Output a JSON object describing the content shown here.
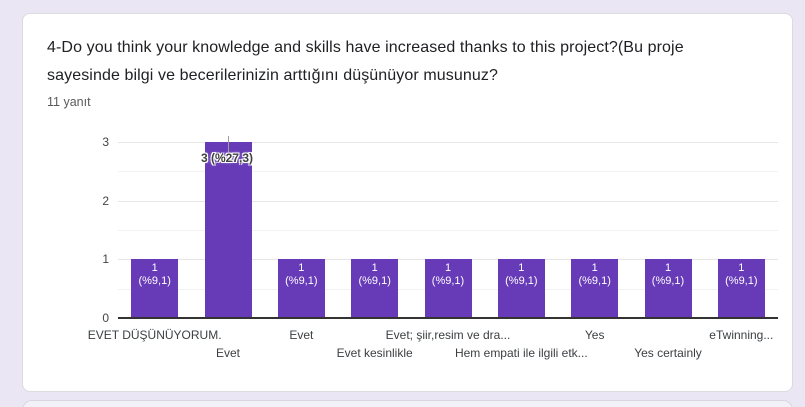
{
  "question_card": {
    "title": "4-Do you think your knowledge and skills have increased thanks to this project?(Bu proje sayesinde bilgi ve becerilerinizin arttığını düşünüyor musunuz?",
    "response_count": "11 yanıt"
  },
  "colors": {
    "bar": "#673ab7",
    "page_background": "#eae6f3",
    "card_background": "#ffffff",
    "annotation_text": "#404040",
    "inside_label_text": "#ffffff"
  },
  "chart_data": {
    "type": "bar",
    "title": "",
    "xlabel": "",
    "ylabel": "",
    "categories": [
      "EVET DÜŞÜNÜYORUM.",
      "Evet",
      "Evet",
      "Evet kesinlikle",
      "Evet; şiir,resim ve dra...",
      "Hem empati ile ilgili etk...",
      "Yes",
      "Yes certainly",
      "eTwinning..."
    ],
    "values": [
      1,
      3,
      1,
      1,
      1,
      1,
      1,
      1,
      1
    ],
    "point_labels": [
      {
        "lines": [
          "1",
          "(%9,1)"
        ],
        "placement": "inside"
      },
      {
        "lines": [
          "3 (%27,3)"
        ],
        "placement": "outside"
      },
      {
        "lines": [
          "1",
          "(%9,1)"
        ],
        "placement": "inside"
      },
      {
        "lines": [
          "1",
          "(%9,1)"
        ],
        "placement": "inside"
      },
      {
        "lines": [
          "1",
          "(%9,1)"
        ],
        "placement": "inside"
      },
      {
        "lines": [
          "1",
          "(%9,1)"
        ],
        "placement": "inside"
      },
      {
        "lines": [
          "1",
          "(%9,1)"
        ],
        "placement": "inside"
      },
      {
        "lines": [
          "1",
          "(%9,1)"
        ],
        "placement": "inside"
      },
      {
        "lines": [
          "1",
          "(%9,1)"
        ],
        "placement": "inside"
      }
    ],
    "ylim": [
      0,
      3
    ],
    "yticks": [
      0,
      1,
      2,
      3
    ],
    "grid": {
      "major_step": 1,
      "minor_step": 0.5
    },
    "legend": "none",
    "bar_color": "#673ab7",
    "label_rows": "staggered"
  }
}
